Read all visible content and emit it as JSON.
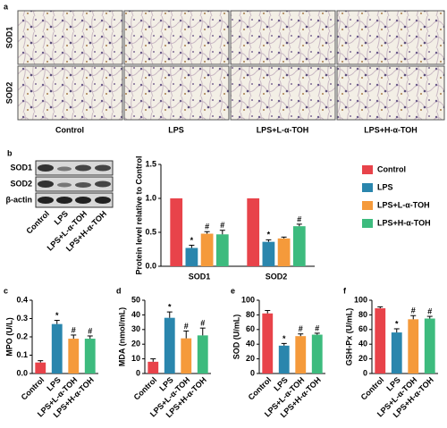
{
  "panel_a": {
    "label": "a",
    "rows": [
      "SOD1",
      "SOD2"
    ],
    "columns": [
      "Control",
      "LPS",
      "LPS+L-α-TOH",
      "LPS+H-α-TOH"
    ]
  },
  "panel_b_blot": {
    "label": "b",
    "rows": [
      "SOD1",
      "SOD2",
      "β-actin"
    ],
    "lanes": [
      "Control",
      "LPS",
      "LPS+L-α-TOH",
      "LPS+H-α-TOH"
    ]
  },
  "chart_data": [
    {
      "type": "bar",
      "y_label": "Protein level relative to Control",
      "categories": [
        "SOD1",
        "SOD2"
      ],
      "series": [
        {
          "name": "Control",
          "color": "#e8434a",
          "values": [
            1,
            1
          ],
          "errors": [
            0,
            0
          ],
          "markers": [
            null,
            null
          ]
        },
        {
          "name": "LPS",
          "color": "#2a86ad",
          "values": [
            0.27,
            0.36
          ],
          "errors": [
            0.04,
            0.03
          ],
          "markers": [
            "*",
            "*"
          ]
        },
        {
          "name": "LPS+L-α-TOH",
          "color": "#f59a3b",
          "values": [
            0.48,
            0.41
          ],
          "errors": [
            0.03,
            0.02
          ],
          "markers": [
            "#",
            null
          ]
        },
        {
          "name": "LPS+H-α-TOH",
          "color": "#3dbb7e",
          "values": [
            0.47,
            0.59
          ],
          "errors": [
            0.06,
            0.03
          ],
          "markers": [
            "#",
            "#"
          ]
        }
      ],
      "ylim": [
        0,
        1.5
      ],
      "yticks": [
        {
          "value": 0,
          "label": "0.0"
        },
        0.5,
        {
          "value": 1,
          "label": "1.0"
        },
        1.5
      ],
      "legend": "right"
    },
    {
      "type": "bar",
      "panel_label": "c",
      "y_label": "MPO (U/L)",
      "categories": [
        "Control",
        "LPS",
        "LPS+L-α-TOH",
        "LPS+H-α-TOH"
      ],
      "values": [
        0.06,
        0.27,
        0.19,
        0.19
      ],
      "errors": [
        0.01,
        0.02,
        0.02,
        0.015
      ],
      "markers": [
        null,
        "*",
        "#",
        "#"
      ],
      "colors": [
        "#e8434a",
        "#2a86ad",
        "#f59a3b",
        "#3dbb7e"
      ],
      "ylim": [
        0,
        0.4
      ],
      "yticks": [
        {
          "value": 0,
          "label": "0.0"
        },
        0.1,
        0.2,
        0.3,
        0.4
      ]
    },
    {
      "type": "bar",
      "panel_label": "d",
      "y_label": "MDA (nmol/mL)",
      "categories": [
        "Control",
        "LPS",
        "LPS+L-α-TOH",
        "LPS+H-α-TOH"
      ],
      "values": [
        8,
        38,
        24,
        26
      ],
      "errors": [
        2,
        4,
        5,
        5
      ],
      "markers": [
        null,
        "*",
        "#",
        "#"
      ],
      "colors": [
        "#e8434a",
        "#2a86ad",
        "#f59a3b",
        "#3dbb7e"
      ],
      "ylim": [
        0,
        50
      ],
      "yticks": [
        0,
        10,
        20,
        30,
        40,
        50
      ]
    },
    {
      "type": "bar",
      "panel_label": "e",
      "y_label": "SOD (U/mL)",
      "categories": [
        "Control",
        "LPS",
        "LPS+L-α-TOH",
        "LPS+H-α-TOH"
      ],
      "values": [
        82,
        38,
        51,
        53
      ],
      "errors": [
        4,
        3,
        3,
        2
      ],
      "markers": [
        null,
        "*",
        "#",
        "#"
      ],
      "colors": [
        "#e8434a",
        "#2a86ad",
        "#f59a3b",
        "#3dbb7e"
      ],
      "ylim": [
        0,
        100
      ],
      "yticks": [
        0,
        20,
        40,
        60,
        80,
        100
      ]
    },
    {
      "type": "bar",
      "panel_label": "f",
      "y_label": "GSH-Px (U/mL)",
      "categories": [
        "Control",
        "LPS",
        "LPS+L-α-TOH",
        "LPS+H-α-TOH"
      ],
      "values": [
        89,
        56,
        74,
        75
      ],
      "errors": [
        2,
        5,
        5,
        3
      ],
      "markers": [
        null,
        "*",
        "#",
        "#"
      ],
      "colors": [
        "#e8434a",
        "#2a86ad",
        "#f59a3b",
        "#3dbb7e"
      ],
      "ylim": [
        0,
        100
      ],
      "yticks": [
        0,
        20,
        40,
        60,
        80,
        100
      ]
    }
  ]
}
